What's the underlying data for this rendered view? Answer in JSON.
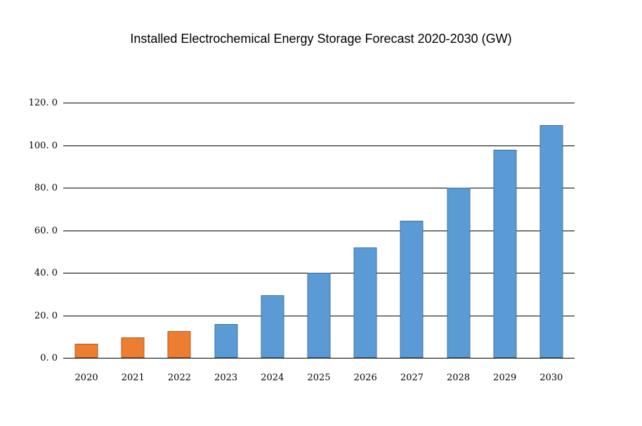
{
  "title": "Installed Electrochemical Energy Storage Forecast 2020-2030 (GW)",
  "chart_data": {
    "type": "bar",
    "title": "Installed Electrochemical Energy Storage Forecast 2020-2030 (GW)",
    "xlabel": "",
    "ylabel": "",
    "categories": [
      "2020",
      "2021",
      "2022",
      "2023",
      "2024",
      "2025",
      "2026",
      "2027",
      "2028",
      "2029",
      "2030"
    ],
    "values": [
      6.5,
      9.5,
      12.5,
      16,
      29.5,
      40,
      52,
      64.5,
      80,
      98,
      109.5
    ],
    "unit": "GW",
    "ylim": [
      0,
      120
    ],
    "y_tick_interval": 20,
    "y_tick_labels": [
      "0. 0",
      "20. 0",
      "40. 0",
      "60. 0",
      "80. 0",
      "100. 0",
      "120. 0"
    ],
    "grid": "horizontal-only",
    "legend": "none",
    "colors": {
      "historical_fill": "#ED7D31",
      "historical_border": "#AE5A21",
      "forecast_fill": "#5B9BD5",
      "forecast_border": "#41719C"
    },
    "historical_bar_count": 3,
    "gridline_color": "#000000",
    "axis_line_color": "#000000"
  }
}
